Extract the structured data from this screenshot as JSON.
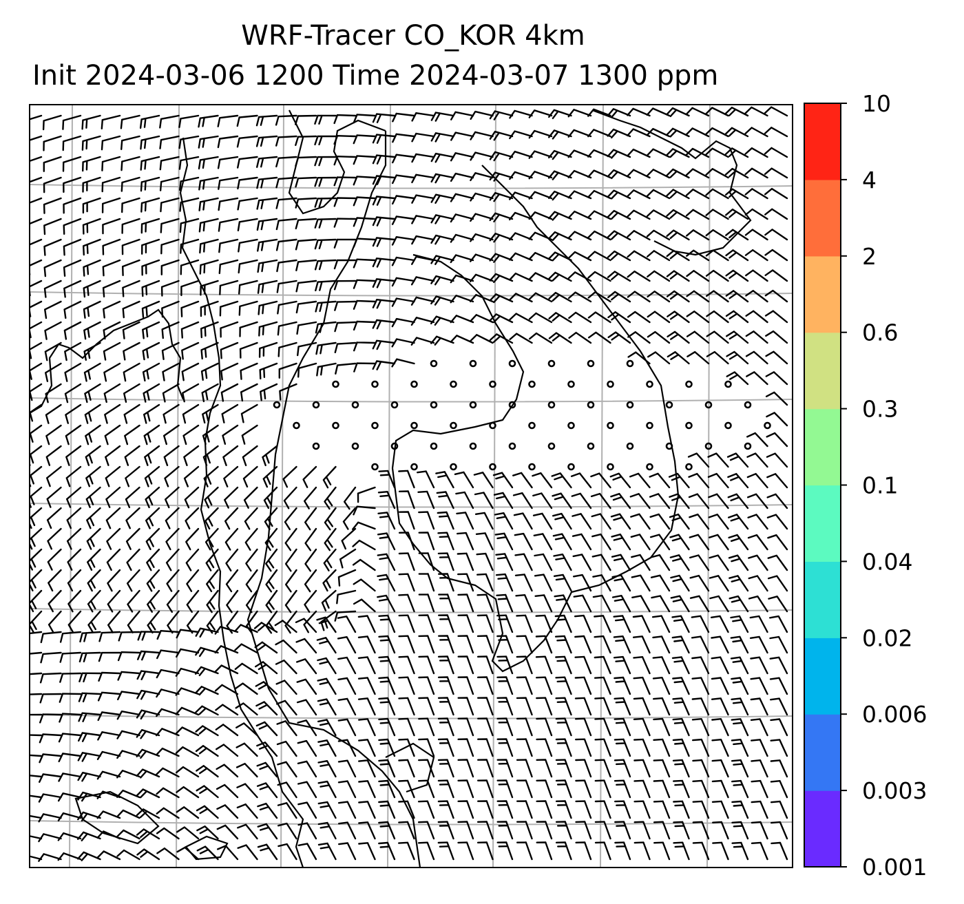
{
  "title": {
    "line1": "WRF-Tracer CO_KOR 4km",
    "line2": "Init 2024-03-06 1200 Time 2024-03-07 1300 ppm"
  },
  "colorbar": {
    "levels": [
      "0.001",
      "0.003",
      "0.006",
      "0.02",
      "0.04",
      "0.1",
      "0.3",
      "0.6",
      "2",
      "4",
      "10"
    ],
    "colors": [
      "#6a2bff",
      "#3477f4",
      "#00b4ec",
      "#2de0d4",
      "#5cfac0",
      "#93f993",
      "#d0e182",
      "#ffb360",
      "#ff6e3a",
      "#ff2415"
    ]
  },
  "map": {
    "background": "#ffffff",
    "grid_color": "#b0b0b0",
    "barb_color": "#000000"
  }
}
